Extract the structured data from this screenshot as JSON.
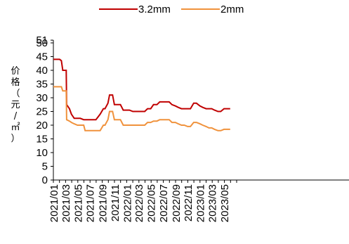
{
  "chart_data": {
    "type": "line",
    "title": "",
    "xlabel": "",
    "ylabel": "价格（元/㎡）",
    "ylim": [
      0,
      50
    ],
    "yticks": [
      0,
      5,
      10,
      15,
      20,
      25,
      30,
      35,
      40,
      45,
      50,
      51
    ],
    "ytick_labels": [
      "0",
      "5",
      "10",
      "15",
      "20",
      "25",
      "30",
      "35",
      "40",
      "45",
      "50",
      "51"
    ],
    "xlim": [
      "2021/01",
      "2023/06"
    ],
    "xtick_labels": [
      "2021/01",
      "2021/03",
      "2021/05",
      "2021/07",
      "2021/09",
      "2021/11",
      "2022/01",
      "2022/03",
      "2022/05",
      "2022/07",
      "2022/09",
      "2022/11",
      "2023/01",
      "2023/03",
      "2023/05"
    ],
    "grid": false,
    "legend": "top-center",
    "series": [
      {
        "name": "3.2mm",
        "color": "#c00000",
        "x": [
          "2021/01/01",
          "2021/02/01",
          "2021/02/10",
          "2021/02/17",
          "2021/03/01",
          "2021/03/06",
          "2021/03/08",
          "2021/03/22",
          "2021/04/01",
          "2021/04/15",
          "2021/05/01",
          "2021/05/15",
          "2021/06/01",
          "2021/06/08",
          "2021/07/01",
          "2021/08/01",
          "2021/08/22",
          "2021/09/07",
          "2021/09/15",
          "2021/09/30",
          "2021/10/08",
          "2021/10/23",
          "2021/11/01",
          "2021/11/15",
          "2021/12/01",
          "2021/12/15",
          "2022/01/01",
          "2022/01/15",
          "2022/02/01",
          "2022/02/15",
          "2022/03/01",
          "2022/04/01",
          "2022/04/15",
          "2022/05/01",
          "2022/05/15",
          "2022/06/01",
          "2022/06/15",
          "2022/07/01",
          "2022/07/15",
          "2022/08/01",
          "2022/08/15",
          "2022/09/01",
          "2022/09/15",
          "2022/10/01",
          "2022/10/15",
          "2022/11/01",
          "2022/11/15",
          "2022/12/01",
          "2022/12/15",
          "2023/01/01",
          "2023/01/15",
          "2023/02/01",
          "2023/02/15",
          "2023/03/01",
          "2023/03/15",
          "2023/04/01",
          "2023/04/15",
          "2023/05/01",
          "2023/05/15",
          "2023/06/01"
        ],
        "values": [
          44,
          44,
          43.5,
          40,
          40,
          40,
          27.5,
          26,
          24,
          22.5,
          22.5,
          22.5,
          22,
          22,
          22,
          22,
          24,
          26,
          26,
          28,
          31,
          31,
          27.5,
          27.5,
          27.5,
          25.5,
          25.5,
          25.5,
          25,
          25,
          25,
          25,
          26,
          26,
          27.5,
          27.5,
          28.5,
          28.5,
          28.5,
          28.5,
          27.5,
          27,
          26.5,
          26,
          26,
          26,
          26,
          28,
          28,
          27,
          26.5,
          26,
          26,
          26,
          25.5,
          25,
          25,
          26,
          26,
          26
        ]
      },
      {
        "name": "2mm",
        "color": "#f0923c",
        "x": [
          "2021/01/01",
          "2021/02/01",
          "2021/02/10",
          "2021/02/17",
          "2021/03/01",
          "2021/03/06",
          "2021/03/08",
          "2021/03/22",
          "2021/04/01",
          "2021/04/15",
          "2021/05/01",
          "2021/05/15",
          "2021/06/01",
          "2021/06/08",
          "2021/07/01",
          "2021/08/01",
          "2021/08/22",
          "2021/09/07",
          "2021/09/15",
          "2021/09/30",
          "2021/10/08",
          "2021/10/23",
          "2021/11/01",
          "2021/11/15",
          "2021/12/01",
          "2021/12/15",
          "2022/01/01",
          "2022/01/15",
          "2022/02/01",
          "2022/02/15",
          "2022/03/01",
          "2022/04/01",
          "2022/04/15",
          "2022/05/01",
          "2022/05/15",
          "2022/06/01",
          "2022/06/15",
          "2022/07/01",
          "2022/07/15",
          "2022/08/01",
          "2022/08/15",
          "2022/09/01",
          "2022/09/15",
          "2022/10/01",
          "2022/10/15",
          "2022/11/01",
          "2022/11/15",
          "2022/12/01",
          "2022/12/15",
          "2023/01/01",
          "2023/01/15",
          "2023/02/01",
          "2023/02/15",
          "2023/03/01",
          "2023/03/15",
          "2023/04/01",
          "2023/04/15",
          "2023/05/01",
          "2023/05/15",
          "2023/06/01"
        ],
        "values": [
          34,
          34,
          34,
          32.5,
          32.5,
          32.5,
          22,
          21.5,
          21,
          20.5,
          20,
          20,
          20,
          18,
          18,
          18,
          18,
          20,
          20,
          22,
          25,
          25,
          22,
          22,
          22,
          20,
          20,
          20,
          20,
          20,
          20,
          20,
          21,
          21,
          21.5,
          21.5,
          22,
          22,
          22,
          22,
          21,
          21,
          20.5,
          20,
          20,
          19.5,
          19.5,
          21,
          21,
          20.5,
          20,
          19.5,
          19,
          19,
          18.5,
          18,
          18,
          18.5,
          18.5,
          18.5
        ]
      }
    ]
  }
}
